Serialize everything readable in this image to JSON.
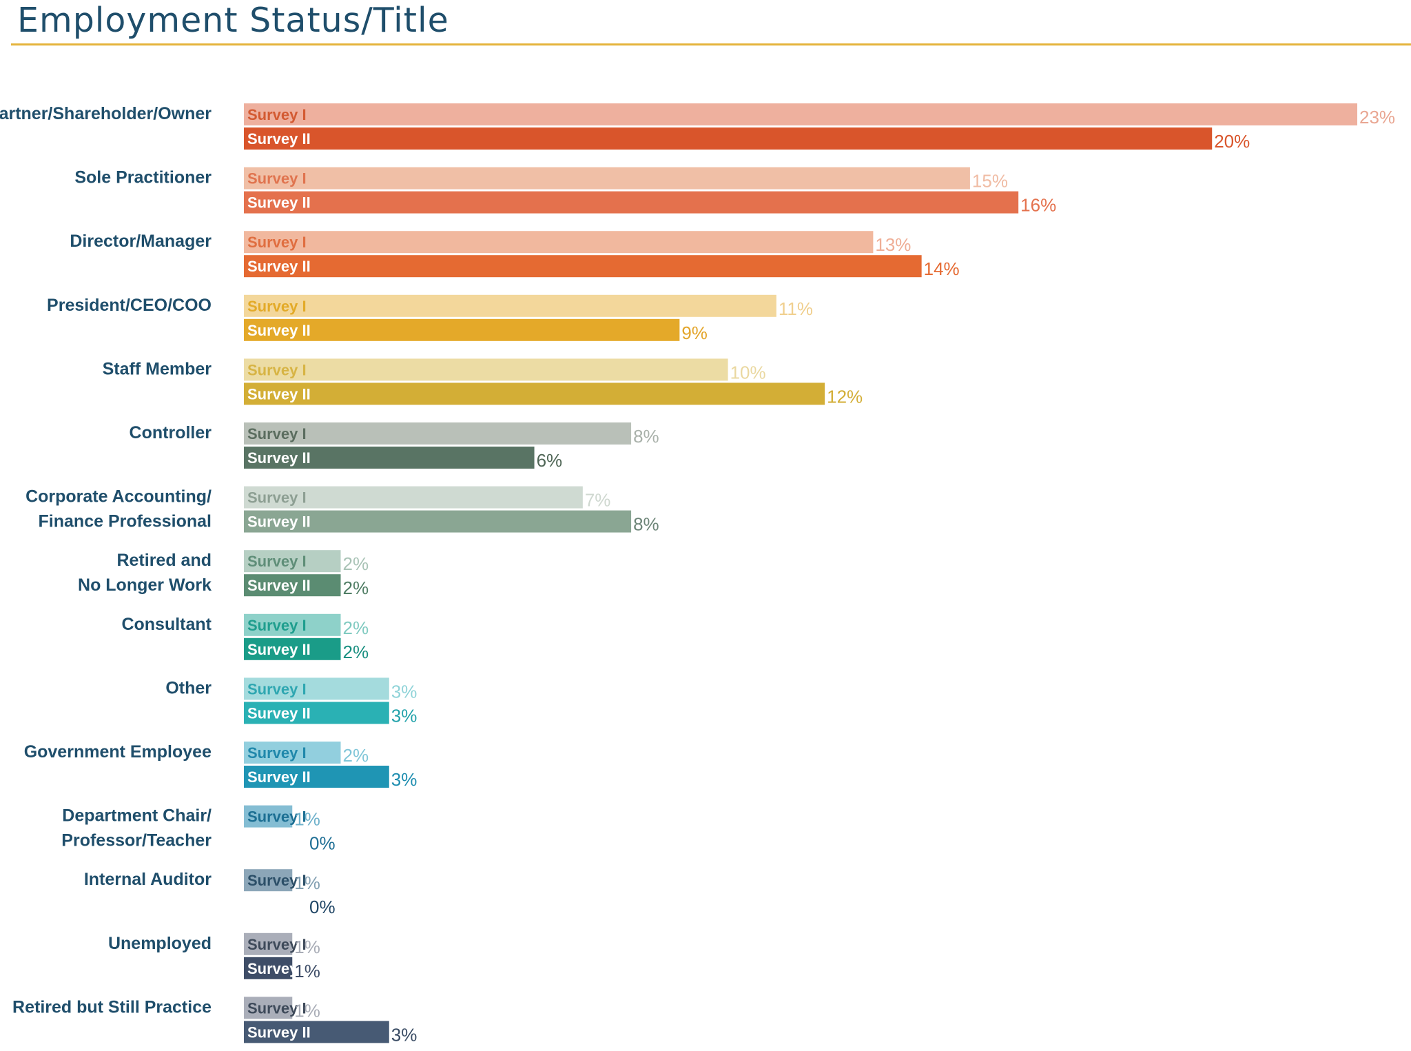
{
  "title": "Employment Status/Title",
  "chart_data": {
    "type": "bar",
    "orientation": "horizontal",
    "xlim": [
      0,
      23
    ],
    "grid": false,
    "legend": "none",
    "categories": [
      [
        "Partner/Shareholder/Owner"
      ],
      [
        "Sole Practitioner"
      ],
      [
        "Director/Manager"
      ],
      [
        "President/CEO/COO"
      ],
      [
        "Staff Member"
      ],
      [
        "Controller"
      ],
      [
        "Corporate Accounting/",
        "Finance Professional"
      ],
      [
        "Retired and",
        "No Longer Work"
      ],
      [
        "Consultant"
      ],
      [
        "Other"
      ],
      [
        "Government Employee"
      ],
      [
        "Department Chair/",
        "Professor/Teacher"
      ],
      [
        "Internal Auditor"
      ],
      [
        "Unemployed"
      ],
      [
        "Retired but Still Practice"
      ]
    ],
    "series": [
      {
        "name": "Survey I",
        "values": [
          23,
          15,
          13,
          11,
          10,
          8,
          7,
          2,
          2,
          3,
          2,
          1,
          1,
          1,
          1
        ],
        "value_labels": [
          "23%",
          "15%",
          "13%",
          "11%",
          "10%",
          "8%",
          "7%",
          "2%",
          "2%",
          "3%",
          "2%",
          "1%",
          "1%",
          "1%",
          "1%"
        ],
        "colors": [
          "#eeb09e",
          "#f0bfa6",
          "#f1b89e",
          "#f3d79b",
          "#ecdca4",
          "#b9c0b8",
          "#cfdad2",
          "#b6cfc3",
          "#8ed1c9",
          "#a4dbdd",
          "#92cfde",
          "#84bdd3",
          "#8ca6b8",
          "#aaaeb9",
          "#aaaeb9"
        ],
        "text_colors": [
          "#d35a32",
          "#e0744f",
          "#e06e40",
          "#e3aa28",
          "#d7b444",
          "#5b6d5f",
          "#8d9f93",
          "#5f8e78",
          "#1f9e8e",
          "#2fa7b1",
          "#2088ab",
          "#1c6f93",
          "#2c4f68",
          "#3e4a5a",
          "#3e4a5a"
        ],
        "label_colors": [
          "#e9a692",
          "#f0bca4",
          "#efae96",
          "#f0cf8e",
          "#ead8a0",
          "#a9b1aa",
          "#cfd8d0",
          "#a9c3b6",
          "#7fcac0",
          "#8fd3d8",
          "#80c6d8",
          "#6fb1cb",
          "#83a0b2",
          "#a8acb6",
          "#a8acb6"
        ]
      },
      {
        "name": "Survey II",
        "values": [
          20,
          16,
          14,
          9,
          12,
          6,
          8,
          2,
          2,
          3,
          3,
          0,
          0,
          1,
          3
        ],
        "value_labels": [
          "20%",
          "16%",
          "14%",
          "9%",
          "12%",
          "6%",
          "8%",
          "2%",
          "2%",
          "3%",
          "3%",
          "0%",
          "0%",
          "1%",
          "3%"
        ],
        "colors": [
          "#d9552b",
          "#e4714d",
          "#e56a32",
          "#e4a929",
          "#d3ae36",
          "#597464",
          "#8aa693",
          "#5b8c72",
          "#1a9c88",
          "#2ab1b4",
          "#1f95b4",
          "#1f6f95",
          "#2a5172",
          "#3e4d67",
          "#475a74"
        ],
        "text_colors": [
          "#ffffff",
          "#ffffff",
          "#ffffff",
          "#ffffff",
          "#ffffff",
          "#ffffff",
          "#ffffff",
          "#ffffff",
          "#ffffff",
          "#ffffff",
          "#ffffff",
          "#ffffff",
          "#ffffff",
          "#ffffff",
          "#ffffff"
        ],
        "label_colors": [
          "#d9552b",
          "#e4714d",
          "#e56a32",
          "#e3a52a",
          "#d3ae36",
          "#4f6656",
          "#6d8578",
          "#4f7d64",
          "#198f80",
          "#22a2aa",
          "#1f8eb0",
          "#1f6f95",
          "#1f4565",
          "#3e4d67",
          "#3a4c64"
        ]
      }
    ]
  }
}
